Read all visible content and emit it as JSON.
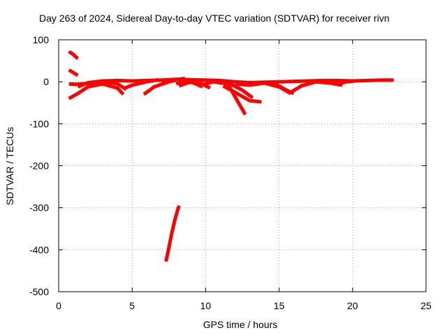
{
  "chart_data": {
    "type": "line",
    "title": "Day 263 of 2024, Sidereal Day-to-day VTEC variation (SDTVAR) for receiver rivn",
    "xlabel": "GPS time / hours",
    "ylabel": "SDTVAR / TECUs",
    "xlim": [
      0,
      25
    ],
    "ylim": [
      -500,
      100
    ],
    "xticks": [
      0,
      5,
      10,
      15,
      20,
      25
    ],
    "yticks": [
      100,
      0,
      -100,
      -200,
      -300,
      -400,
      -500
    ],
    "grid": true,
    "legend": "none",
    "color": "#ff0000",
    "series": [
      {
        "x": [
          0.7,
          1.0,
          1.3
        ],
        "y": [
          72,
          65,
          55
        ]
      },
      {
        "x": [
          0.7,
          1.0,
          1.3
        ],
        "y": [
          28,
          22,
          15
        ]
      },
      {
        "x": [
          0.7,
          1.2,
          2.0,
          3.0,
          4.0,
          5.0,
          6.0,
          7.0,
          8.0,
          9.0,
          10.0,
          11.0,
          12.0,
          13.0,
          14.0,
          15.0,
          16.0,
          17.0,
          18.0,
          19.0,
          20.0,
          21.0,
          22.0,
          22.8
        ],
        "y": [
          -5,
          -6,
          -4,
          2,
          3,
          2,
          3,
          4,
          6,
          5,
          4,
          3,
          0,
          -2,
          -1,
          0,
          1,
          2,
          3,
          3,
          2,
          3,
          4,
          4
        ]
      },
      {
        "x": [
          0.7,
          1.3,
          2.0,
          3.0,
          4.0,
          4.4
        ],
        "y": [
          -40,
          -28,
          -12,
          -5,
          -15,
          -30
        ]
      },
      {
        "x": [
          1.3,
          2.0,
          3.0,
          4.0,
          4.6
        ],
        "y": [
          -12,
          -2,
          2,
          -5,
          -18
        ]
      },
      {
        "x": [
          4.5,
          5.0,
          6.0,
          6.8
        ],
        "y": [
          -15,
          -8,
          0,
          5
        ]
      },
      {
        "x": [
          5.8,
          6.5,
          7.5,
          8.0
        ],
        "y": [
          -30,
          -12,
          0,
          4
        ]
      },
      {
        "x": [
          7.0,
          7.5,
          8.0,
          8.6
        ],
        "y": [
          0,
          2,
          5,
          8
        ]
      },
      {
        "x": [
          8.0,
          8.5,
          9.0,
          9.8
        ],
        "y": [
          -5,
          2,
          0,
          -12
        ]
      },
      {
        "x": [
          8.2,
          8.8,
          9.5,
          10.3
        ],
        "y": [
          -10,
          -2,
          0,
          -15
        ]
      },
      {
        "x": [
          9.5,
          10.5,
          11.5,
          12.7
        ],
        "y": [
          -10,
          0,
          -5,
          -78
        ]
      },
      {
        "x": [
          10.5,
          11.5,
          12.5,
          13.2
        ],
        "y": [
          0,
          -2,
          -20,
          -38
        ]
      },
      {
        "x": [
          11.2,
          12.0,
          13.0,
          13.8
        ],
        "y": [
          -10,
          -25,
          -45,
          -48
        ]
      },
      {
        "x": [
          12.0,
          13.0,
          14.0,
          15.0,
          15.8
        ],
        "y": [
          -5,
          -8,
          -3,
          -12,
          -28
        ]
      },
      {
        "x": [
          14.5,
          15.0,
          15.5,
          16.0
        ],
        "y": [
          -3,
          -10,
          -20,
          -28
        ]
      },
      {
        "x": [
          15.8,
          16.5,
          17.5,
          18.5
        ],
        "y": [
          -25,
          -10,
          0,
          2
        ]
      },
      {
        "x": [
          17.5,
          18.5,
          19.3
        ],
        "y": [
          0,
          -3,
          -8
        ]
      },
      {
        "x": [
          19.0,
          19.6,
          20.2
        ],
        "y": [
          -5,
          0,
          2
        ]
      },
      {
        "x": [
          7.3,
          7.5,
          7.7,
          7.9,
          8.1,
          8.2
        ],
        "y": [
          -428,
          -395,
          -360,
          -330,
          -305,
          -295
        ]
      }
    ]
  }
}
